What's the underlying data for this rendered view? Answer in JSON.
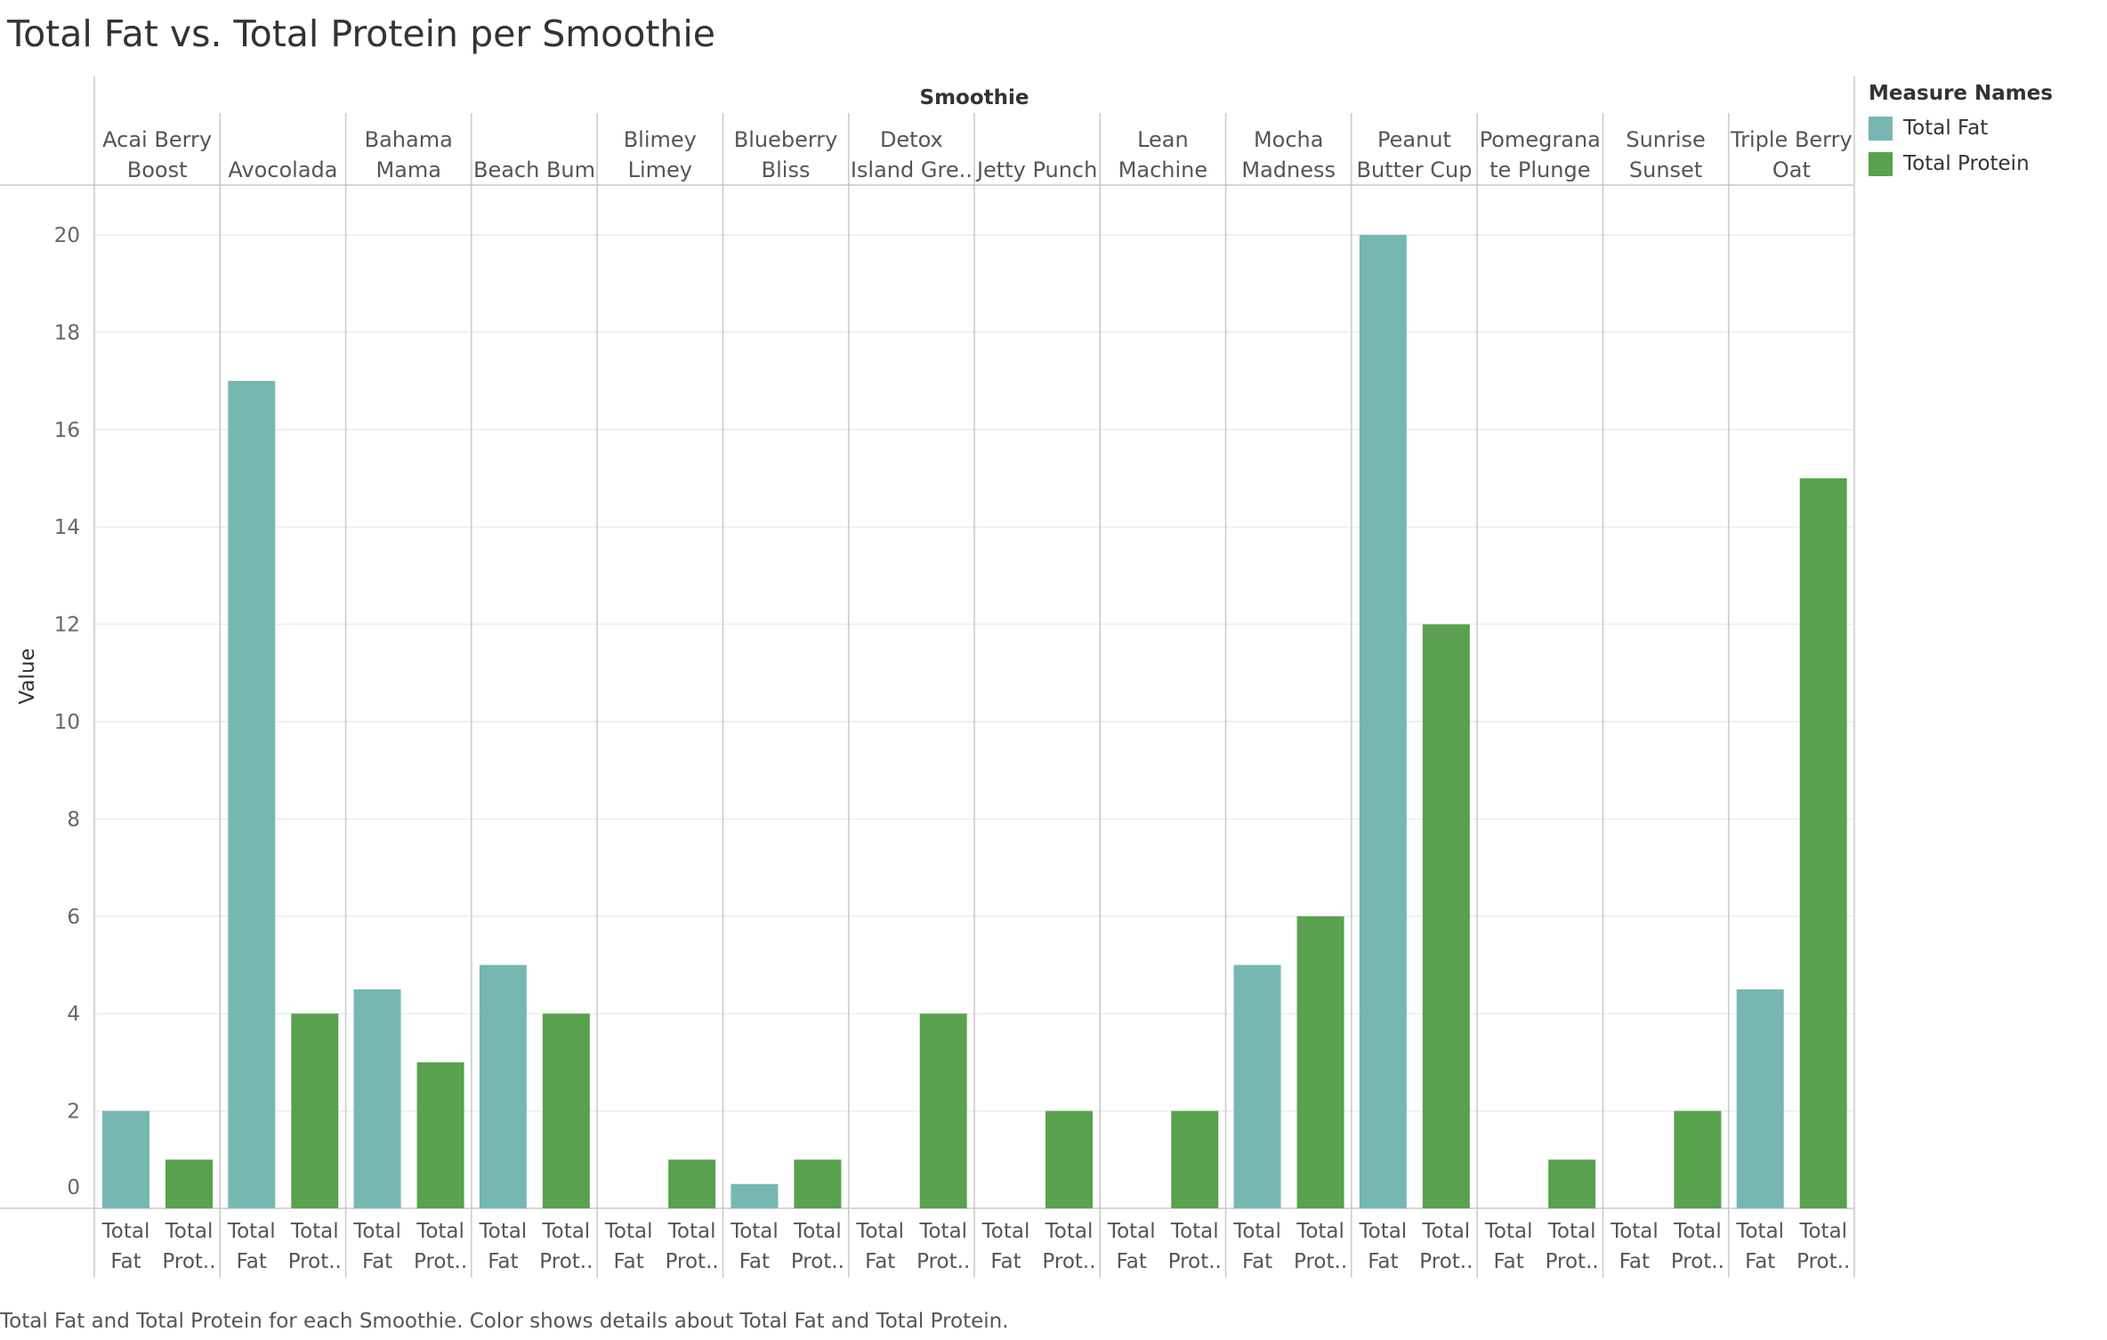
{
  "chart_data": {
    "type": "bar",
    "title": "Total Fat vs. Total Protein per Smoothie",
    "column_header": "Smoothie",
    "ylabel": "Value",
    "ylim": [
      0,
      21
    ],
    "yticks": [
      0,
      2,
      4,
      6,
      8,
      10,
      12,
      14,
      16,
      18,
      20
    ],
    "grid": true,
    "legend_title": "Measure Names",
    "legend_position": "top-right",
    "caption": "Total Fat and Total Protein for each Smoothie.  Color shows details about Total Fat and Total Protein.",
    "categories": [
      {
        "line1": "Acai Berry",
        "line2": "Boost"
      },
      {
        "line1": "",
        "line2": "Avocolada"
      },
      {
        "line1": "Bahama",
        "line2": "Mama"
      },
      {
        "line1": "",
        "line2": "Beach Bum"
      },
      {
        "line1": "Blimey",
        "line2": "Limey"
      },
      {
        "line1": "Blueberry",
        "line2": "Bliss"
      },
      {
        "line1": "Detox",
        "line2": "Island Gre.."
      },
      {
        "line1": "",
        "line2": "Jetty Punch"
      },
      {
        "line1": "Lean",
        "line2": "Machine"
      },
      {
        "line1": "Mocha",
        "line2": "Madness"
      },
      {
        "line1": "Peanut",
        "line2": "Butter Cup"
      },
      {
        "line1": "Pomegrana",
        "line2": "te Plunge"
      },
      {
        "line1": "Sunrise",
        "line2": "Sunset"
      },
      {
        "line1": "Triple Berry",
        "line2": "Oat"
      }
    ],
    "series": [
      {
        "name": "Total Fat",
        "axis_line1": "Total",
        "axis_line2": "Fat",
        "color": "#76b7b2",
        "values": [
          2,
          17,
          4.5,
          5,
          0,
          0.5,
          0,
          0,
          0,
          5,
          20,
          0,
          0,
          4.5
        ]
      },
      {
        "name": "Total Protein",
        "axis_line1": "Total",
        "axis_line2": "Prot..",
        "color": "#59a14f",
        "values": [
          1,
          4,
          3,
          4,
          1,
          1,
          4,
          2,
          2,
          6,
          12,
          1,
          2,
          15
        ]
      }
    ]
  }
}
